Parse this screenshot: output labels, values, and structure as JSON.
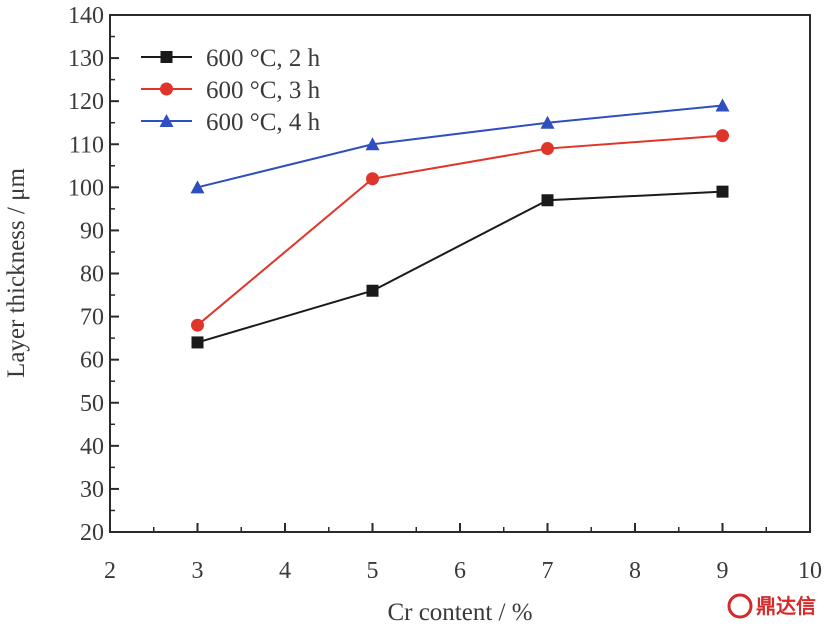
{
  "chart_data": {
    "type": "line",
    "title": "",
    "xlabel": "Cr content / %",
    "ylabel": "Layer thickness / μm",
    "xlim": [
      2,
      10
    ],
    "ylim": [
      20,
      140
    ],
    "x_ticks": [
      2,
      3,
      4,
      5,
      6,
      7,
      8,
      9,
      10
    ],
    "y_ticks": [
      20,
      30,
      40,
      50,
      60,
      70,
      80,
      90,
      100,
      110,
      120,
      130,
      140
    ],
    "grid": false,
    "legend_position": "top-left",
    "x": [
      3,
      5,
      7,
      9
    ],
    "series": [
      {
        "name": "600 °C, 2 h",
        "color": "#1a1a1a",
        "marker": "square",
        "values": [
          64,
          76,
          97,
          99
        ]
      },
      {
        "name": "600 °C, 3 h",
        "color": "#e0352b",
        "marker": "circle",
        "values": [
          68,
          102,
          109,
          112
        ]
      },
      {
        "name": "600 °C, 4 h",
        "color": "#2f4fc0",
        "marker": "triangle",
        "values": [
          100,
          110,
          115,
          119
        ]
      }
    ]
  },
  "watermark": {
    "text": "鼎达信",
    "color": "#d42a2a"
  }
}
